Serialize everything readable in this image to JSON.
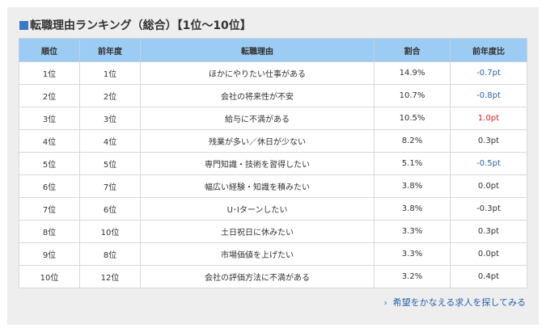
{
  "title": "転職理由ランキング（総合）【1位〜10位】",
  "colors": {
    "accent": "#3a78c8",
    "header_bg": "#9ccbf3",
    "negative": "#2a63a8",
    "positive": "#e02020"
  },
  "table": {
    "headers": [
      "順位",
      "前年度",
      "転職理由",
      "割合",
      "前年度比"
    ],
    "rows": [
      {
        "rank": "1位",
        "prev": "1位",
        "reason": "ほかにやりたい仕事がある",
        "ratio": "14.9%",
        "change": "-0.7pt",
        "trend": "neg"
      },
      {
        "rank": "2位",
        "prev": "2位",
        "reason": "会社の将来性が不安",
        "ratio": "10.7%",
        "change": "-0.8pt",
        "trend": "neg"
      },
      {
        "rank": "3位",
        "prev": "3位",
        "reason": "給与に不満がある",
        "ratio": "10.5%",
        "change": "1.0pt",
        "trend": "pos"
      },
      {
        "rank": "4位",
        "prev": "4位",
        "reason": "残業が多い／休日が少ない",
        "ratio": "8.2%",
        "change": "0.3pt",
        "trend": "none"
      },
      {
        "rank": "5位",
        "prev": "5位",
        "reason": "専門知識・技術を習得したい",
        "ratio": "5.1%",
        "change": "-0.5pt",
        "trend": "neg"
      },
      {
        "rank": "6位",
        "prev": "7位",
        "reason": "幅広い経験・知識を積みたい",
        "ratio": "3.8%",
        "change": "0.0pt",
        "trend": "none"
      },
      {
        "rank": "7位",
        "prev": "6位",
        "reason": "U･Iターンしたい",
        "ratio": "3.8%",
        "change": "-0.3pt",
        "trend": "none"
      },
      {
        "rank": "8位",
        "prev": "10位",
        "reason": "土日祝日に休みたい",
        "ratio": "3.3%",
        "change": "0.3pt",
        "trend": "none"
      },
      {
        "rank": "9位",
        "prev": "8位",
        "reason": "市場価値を上げたい",
        "ratio": "3.3%",
        "change": "0.0pt",
        "trend": "none"
      },
      {
        "rank": "10位",
        "prev": "12位",
        "reason": "会社の評価方法に不満がある",
        "ratio": "3.2%",
        "change": "0.4pt",
        "trend": "none"
      }
    ]
  },
  "cta": {
    "label": "希望をかなえる求人を探してみる",
    "icon": "chevron-right-icon"
  }
}
